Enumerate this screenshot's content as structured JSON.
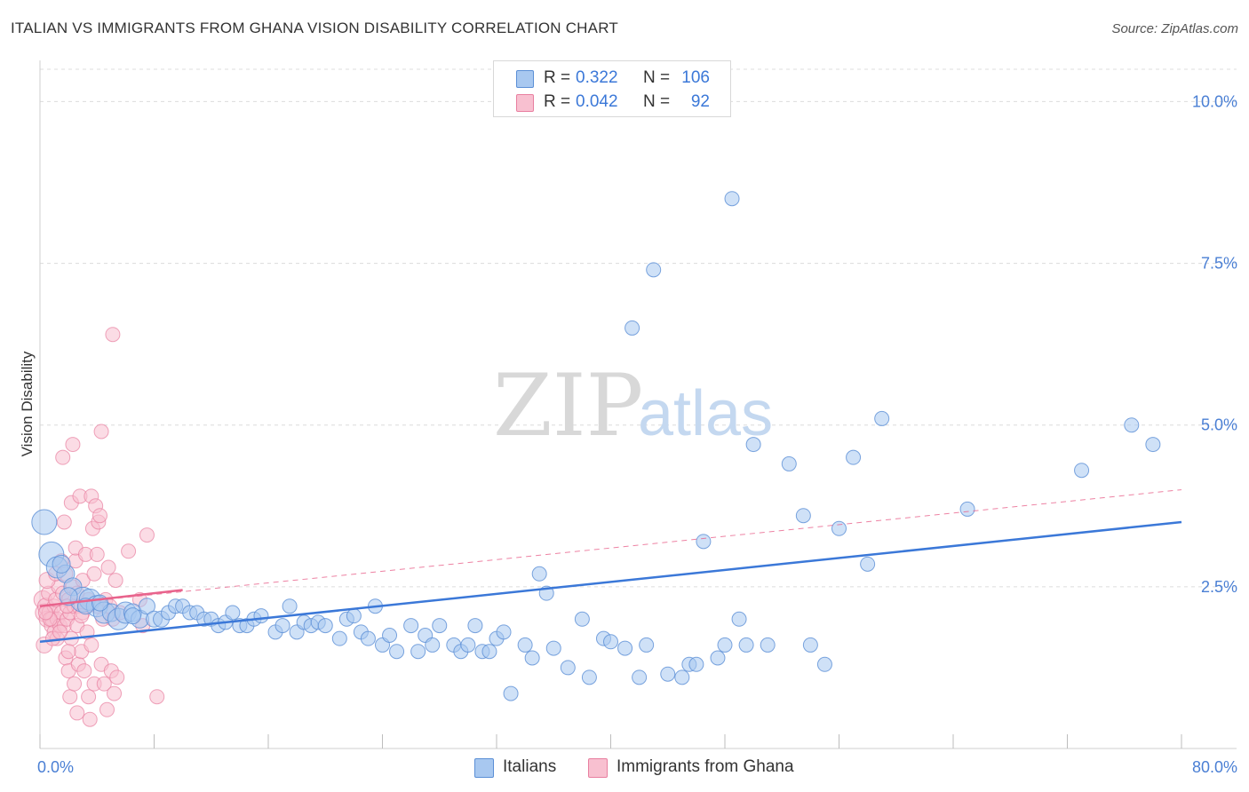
{
  "title": "ITALIAN VS IMMIGRANTS FROM GHANA VISION DISABILITY CORRELATION CHART",
  "source": "Source: ZipAtlas.com",
  "watermark": {
    "zip": "ZIP",
    "atlas": "atlas"
  },
  "legend": {
    "r_label": "R =",
    "n_label": "N =",
    "rows": [
      {
        "r": "0.322",
        "n": "106",
        "fill": "#a8c8f0",
        "stroke": "#5b8fd6"
      },
      {
        "r": "0.042",
        "n": "92",
        "fill": "#f8c0d0",
        "stroke": "#e87fa0"
      }
    ]
  },
  "bottom_legend": [
    {
      "label": "Italians",
      "fill": "#a8c8f0",
      "stroke": "#5b8fd6"
    },
    {
      "label": "Immigrants from Ghana",
      "fill": "#f8c0d0",
      "stroke": "#e87fa0"
    }
  ],
  "chart_data": {
    "type": "scatter",
    "title": "ITALIAN VS IMMIGRANTS FROM GHANA VISION DISABILITY CORRELATION CHART",
    "ylabel": "Vision Disability",
    "xlabel": "",
    "xlim": [
      0,
      80
    ],
    "ylim": [
      0,
      10.5
    ],
    "x_tick_labels": [
      "0.0%",
      "80.0%"
    ],
    "y_ticks": [
      {
        "value": 2.5,
        "label": "2.5%"
      },
      {
        "value": 5.0,
        "label": "5.0%"
      },
      {
        "value": 7.5,
        "label": "7.5%"
      },
      {
        "value": 10.0,
        "label": "10.0%"
      }
    ],
    "grid": true,
    "colors": {
      "italians": "#5b8fd6",
      "ghana": "#e87fa0",
      "italians_line": "#3b78d8",
      "ghana_line": "#e8638c"
    },
    "series": [
      {
        "name": "Italians",
        "points": [
          [
            0.3,
            3.5,
            14
          ],
          [
            0.8,
            3.0,
            14
          ],
          [
            1.2,
            2.8,
            12
          ],
          [
            1.8,
            2.7,
            10
          ],
          [
            2.3,
            2.5,
            10
          ],
          [
            3.0,
            2.3,
            14
          ],
          [
            3.5,
            2.3,
            12
          ],
          [
            4.0,
            2.2,
            12
          ],
          [
            4.5,
            2.1,
            12
          ],
          [
            5.0,
            2.1,
            10
          ],
          [
            5.5,
            2.0,
            12
          ],
          [
            6.0,
            2.1,
            12
          ],
          [
            6.5,
            2.1,
            10
          ],
          [
            7.0,
            2.0,
            10
          ],
          [
            7.5,
            2.2,
            9
          ],
          [
            8.0,
            2.0,
            9
          ],
          [
            8.5,
            2.0,
            9
          ],
          [
            9.0,
            2.1,
            8
          ],
          [
            9.5,
            2.2,
            8
          ],
          [
            10.0,
            2.2,
            8
          ],
          [
            10.5,
            2.1,
            8
          ],
          [
            11.0,
            2.1,
            8
          ],
          [
            11.5,
            2.0,
            8
          ],
          [
            12.0,
            2.0,
            8
          ],
          [
            12.5,
            1.9,
            8
          ],
          [
            13.0,
            1.95,
            8
          ],
          [
            13.5,
            2.1,
            8
          ],
          [
            14.0,
            1.9,
            8
          ],
          [
            14.5,
            1.9,
            8
          ],
          [
            15.0,
            2.0,
            8
          ],
          [
            15.5,
            2.05,
            8
          ],
          [
            16.5,
            1.8,
            8
          ],
          [
            17.0,
            1.9,
            8
          ],
          [
            17.5,
            2.2,
            8
          ],
          [
            18.0,
            1.8,
            8
          ],
          [
            18.5,
            1.95,
            8
          ],
          [
            19.0,
            1.9,
            8
          ],
          [
            19.5,
            1.95,
            8
          ],
          [
            20.0,
            1.9,
            8
          ],
          [
            21.0,
            1.7,
            8
          ],
          [
            21.5,
            2.0,
            8
          ],
          [
            22.0,
            2.05,
            8
          ],
          [
            22.5,
            1.8,
            8
          ],
          [
            23.0,
            1.7,
            8
          ],
          [
            23.5,
            2.2,
            8
          ],
          [
            24.0,
            1.6,
            8
          ],
          [
            24.5,
            1.75,
            8
          ],
          [
            25.0,
            1.5,
            8
          ],
          [
            26.0,
            1.9,
            8
          ],
          [
            26.5,
            1.5,
            8
          ],
          [
            27.0,
            1.75,
            8
          ],
          [
            27.5,
            1.6,
            8
          ],
          [
            28.0,
            1.9,
            8
          ],
          [
            29.0,
            1.6,
            8
          ],
          [
            29.5,
            1.5,
            8
          ],
          [
            30.0,
            1.6,
            8
          ],
          [
            30.5,
            1.9,
            8
          ],
          [
            31.0,
            1.5,
            8
          ],
          [
            31.5,
            1.5,
            8
          ],
          [
            32.0,
            1.7,
            8
          ],
          [
            32.5,
            1.8,
            8
          ],
          [
            33.0,
            0.85,
            8
          ],
          [
            34.0,
            1.6,
            8
          ],
          [
            34.5,
            1.4,
            8
          ],
          [
            35.0,
            2.7,
            8
          ],
          [
            35.5,
            2.4,
            8
          ],
          [
            36.0,
            1.55,
            8
          ],
          [
            37.0,
            1.25,
            8
          ],
          [
            38.0,
            2.0,
            8
          ],
          [
            38.5,
            1.1,
            8
          ],
          [
            39.5,
            1.7,
            8
          ],
          [
            40.0,
            1.65,
            8
          ],
          [
            41.0,
            1.55,
            8
          ],
          [
            41.5,
            6.5,
            8
          ],
          [
            42.0,
            1.1,
            8
          ],
          [
            42.5,
            1.6,
            8
          ],
          [
            43.0,
            7.4,
            8
          ],
          [
            44.0,
            1.15,
            8
          ],
          [
            45.0,
            1.1,
            8
          ],
          [
            45.5,
            1.3,
            8
          ],
          [
            46.0,
            1.3,
            8
          ],
          [
            46.5,
            3.2,
            8
          ],
          [
            47.5,
            1.4,
            8
          ],
          [
            48.5,
            8.5,
            8
          ],
          [
            48.0,
            1.6,
            8
          ],
          [
            49.0,
            2.0,
            8
          ],
          [
            49.5,
            1.6,
            8
          ],
          [
            50.0,
            4.7,
            8
          ],
          [
            51.0,
            1.6,
            8
          ],
          [
            52.5,
            4.4,
            8
          ],
          [
            53.5,
            3.6,
            8
          ],
          [
            54.0,
            1.6,
            8
          ],
          [
            55.0,
            1.3,
            8
          ],
          [
            56.0,
            3.4,
            8
          ],
          [
            57.0,
            4.5,
            8
          ],
          [
            58.0,
            2.85,
            8
          ],
          [
            59.0,
            5.1,
            8
          ],
          [
            65.0,
            3.7,
            8
          ],
          [
            73.0,
            4.3,
            8
          ],
          [
            76.5,
            5.0,
            8
          ],
          [
            78.0,
            4.7,
            8
          ],
          [
            1.5,
            2.85,
            10
          ],
          [
            2.0,
            2.35,
            10
          ],
          [
            3.2,
            2.2,
            9
          ],
          [
            4.2,
            2.25,
            9
          ],
          [
            6.5,
            2.05,
            9
          ]
        ],
        "trend": {
          "x": [
            0,
            80
          ],
          "y": [
            1.65,
            3.5
          ]
        }
      },
      {
        "name": "Immigrants from Ghana",
        "points": [
          [
            0.2,
            2.3,
            10
          ],
          [
            0.3,
            2.1,
            10
          ],
          [
            0.4,
            2.2,
            9
          ],
          [
            0.5,
            2.0,
            9
          ],
          [
            0.6,
            2.4,
            8
          ],
          [
            0.7,
            2.1,
            9
          ],
          [
            0.8,
            1.9,
            8
          ],
          [
            0.9,
            2.0,
            9
          ],
          [
            1.0,
            2.2,
            8
          ],
          [
            1.0,
            1.8,
            8
          ],
          [
            1.1,
            2.3,
            8
          ],
          [
            1.2,
            2.0,
            8
          ],
          [
            1.2,
            1.7,
            8
          ],
          [
            1.3,
            2.5,
            8
          ],
          [
            1.4,
            1.9,
            8
          ],
          [
            1.5,
            2.1,
            8
          ],
          [
            1.5,
            2.9,
            8
          ],
          [
            1.6,
            2.4,
            8
          ],
          [
            1.6,
            4.5,
            8
          ],
          [
            1.7,
            1.9,
            8
          ],
          [
            1.7,
            3.5,
            8
          ],
          [
            1.8,
            2.7,
            8
          ],
          [
            1.8,
            1.4,
            8
          ],
          [
            1.9,
            2.0,
            8
          ],
          [
            2.0,
            2.3,
            8
          ],
          [
            2.0,
            1.2,
            8
          ],
          [
            2.1,
            2.1,
            8
          ],
          [
            2.1,
            0.8,
            8
          ],
          [
            2.2,
            1.7,
            8
          ],
          [
            2.2,
            3.8,
            8
          ],
          [
            2.3,
            2.5,
            8
          ],
          [
            2.3,
            4.7,
            8
          ],
          [
            2.4,
            1.0,
            8
          ],
          [
            2.4,
            2.2,
            8
          ],
          [
            2.5,
            2.9,
            8
          ],
          [
            2.5,
            3.1,
            8
          ],
          [
            2.6,
            1.9,
            8
          ],
          [
            2.6,
            0.55,
            8
          ],
          [
            2.7,
            2.2,
            8
          ],
          [
            2.7,
            1.3,
            8
          ],
          [
            2.8,
            3.9,
            8
          ],
          [
            2.9,
            1.5,
            8
          ],
          [
            3.0,
            2.6,
            8
          ],
          [
            3.0,
            2.1,
            8
          ],
          [
            3.1,
            1.2,
            8
          ],
          [
            3.2,
            3.0,
            8
          ],
          [
            3.3,
            1.8,
            8
          ],
          [
            3.4,
            2.3,
            8
          ],
          [
            3.4,
            0.8,
            8
          ],
          [
            3.5,
            0.45,
            8
          ],
          [
            3.6,
            3.9,
            8
          ],
          [
            3.6,
            1.6,
            8
          ],
          [
            3.7,
            3.4,
            8
          ],
          [
            3.8,
            2.7,
            8
          ],
          [
            3.8,
            1.0,
            8
          ],
          [
            3.9,
            3.75,
            8
          ],
          [
            4.0,
            2.2,
            8
          ],
          [
            4.0,
            3.0,
            8
          ],
          [
            4.1,
            3.5,
            8
          ],
          [
            4.2,
            3.6,
            8
          ],
          [
            4.3,
            1.3,
            8
          ],
          [
            4.3,
            4.9,
            8
          ],
          [
            4.4,
            2.0,
            8
          ],
          [
            4.5,
            1.0,
            8
          ],
          [
            4.6,
            2.3,
            8
          ],
          [
            4.7,
            0.6,
            8
          ],
          [
            4.8,
            2.8,
            8
          ],
          [
            4.9,
            2.2,
            8
          ],
          [
            5.0,
            1.2,
            8
          ],
          [
            5.1,
            2.0,
            8
          ],
          [
            5.1,
            6.4,
            8
          ],
          [
            5.2,
            0.85,
            8
          ],
          [
            5.3,
            2.6,
            8
          ],
          [
            5.4,
            1.1,
            8
          ],
          [
            5.6,
            2.1,
            8
          ],
          [
            6.2,
            3.05,
            8
          ],
          [
            7.0,
            2.3,
            8
          ],
          [
            7.2,
            1.9,
            8
          ],
          [
            7.5,
            3.3,
            8
          ],
          [
            8.2,
            0.8,
            8
          ],
          [
            0.3,
            1.6,
            9
          ],
          [
            0.5,
            2.6,
            9
          ],
          [
            0.9,
            1.7,
            8
          ],
          [
            1.1,
            2.7,
            8
          ],
          [
            2.0,
            1.5,
            8
          ],
          [
            2.6,
            2.4,
            8
          ],
          [
            3.2,
            2.2,
            8
          ],
          [
            1.4,
            1.8,
            8
          ],
          [
            0.7,
            2.0,
            8
          ],
          [
            0.4,
            2.1,
            8
          ],
          [
            1.9,
            2.2,
            8
          ],
          [
            2.9,
            2.05,
            8
          ]
        ],
        "trend_solid": {
          "x": [
            0,
            10
          ],
          "y": [
            2.2,
            2.45
          ]
        },
        "trend_dashed": {
          "x": [
            0,
            80
          ],
          "y": [
            2.2,
            4.0
          ]
        }
      }
    ]
  }
}
